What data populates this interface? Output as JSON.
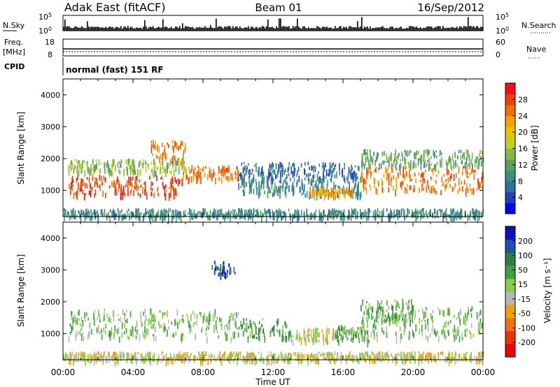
{
  "header": {
    "station": "Adak East (fitACF)",
    "beam": "Beam 01",
    "date": "16/Sep/2012"
  },
  "summary": {
    "nsky_label": "N.Sky",
    "nsearch_label": "N.Search",
    "nsky_ticks": [
      {
        "base": "10",
        "exp": "5"
      },
      {
        "base": "10",
        "exp": "0"
      }
    ],
    "freq_label_1": "Freq.",
    "freq_label_2": "[MHz]",
    "freq_ticks": [
      "18",
      "8"
    ],
    "nave_label": "Nave",
    "nave_ticks": [
      "60",
      "0"
    ],
    "cpid_label": "CPID",
    "cpid_text": "normal (fast) 151 RF"
  },
  "chart_data": [
    {
      "type": "heatmap",
      "name": "power",
      "ylabel": "Slant Range [km]",
      "xlabel": "",
      "xlim": [
        0,
        24
      ],
      "ylim": [
        180,
        4500
      ],
      "x_ticks": [
        "00:00",
        "04:00",
        "08:00",
        "12:00",
        "16:00",
        "20:00",
        "00:00"
      ],
      "y_ticks": [
        1000,
        2000,
        3000,
        4000
      ],
      "colorbar": {
        "label": "Power [dB]",
        "ticks": [
          4,
          8,
          12,
          16,
          20,
          24,
          28
        ],
        "range": [
          0,
          32
        ],
        "colors": [
          "#0000ff",
          "#1f3fbf",
          "#2e6fa0",
          "#3a8f80",
          "#5aa060",
          "#8ab840",
          "#c0d020",
          "#f0c000",
          "#f8a000",
          "#f07000",
          "#f04000",
          "#f01010"
        ]
      },
      "bands": [
        {
          "t0": 0.3,
          "t1": 6.8,
          "r0": 900,
          "r1": 1500,
          "value": 28
        },
        {
          "t0": 6.8,
          "t1": 10.0,
          "r0": 1400,
          "r1": 1800,
          "value": 24
        },
        {
          "t0": 0.3,
          "t1": 7.0,
          "r0": 1600,
          "r1": 2000,
          "value": 14
        },
        {
          "t0": 10.0,
          "t1": 17.0,
          "r0": 900,
          "r1": 1400,
          "value": 10
        },
        {
          "t0": 14.0,
          "t1": 16.5,
          "r0": 900,
          "r1": 1100,
          "value": 22
        },
        {
          "t0": 17.0,
          "t1": 24.0,
          "r0": 1000,
          "r1": 1800,
          "value": 26
        },
        {
          "t0": 17.0,
          "t1": 24.0,
          "r0": 1800,
          "r1": 2300,
          "value": 12
        },
        {
          "t0": 5.0,
          "t1": 7.0,
          "r0": 2000,
          "r1": 2600,
          "value": 24
        },
        {
          "t0": 10.0,
          "t1": 17.0,
          "r0": 1400,
          "r1": 1900,
          "value": 6
        },
        {
          "t0": 0.0,
          "t1": 24.0,
          "r0": 200,
          "r1": 450,
          "value": 10
        }
      ]
    },
    {
      "type": "heatmap",
      "name": "velocity",
      "ylabel": "Slant Range [km]",
      "xlabel": "Time UT",
      "xlim": [
        0,
        24
      ],
      "ylim": [
        180,
        4500
      ],
      "x_ticks": [
        "00:00",
        "04:00",
        "08:00",
        "12:00",
        "16:00",
        "20:00",
        "00:00"
      ],
      "y_ticks": [
        1000,
        2000,
        3000,
        4000
      ],
      "colorbar": {
        "label": "Velocity [m s⁻¹]",
        "ticks": [
          200,
          100,
          50,
          15,
          -15,
          -50,
          -100,
          -200
        ],
        "colors": [
          "#1010c0",
          "#2050b0",
          "#2f7f3f",
          "#40a040",
          "#80d040",
          "#b8b8b0",
          "#f0a000",
          "#f07010",
          "#f03000",
          "#f00000"
        ]
      },
      "bands": [
        {
          "t0": 0.3,
          "t1": 10.0,
          "r0": 900,
          "r1": 1800,
          "value": 0
        },
        {
          "t0": 10.0,
          "t1": 13.0,
          "r0": 900,
          "r1": 1500,
          "value": 40
        },
        {
          "t0": 13.0,
          "t1": 15.5,
          "r0": 800,
          "r1": 1200,
          "value": -40
        },
        {
          "t0": 15.5,
          "t1": 17.5,
          "r0": 800,
          "r1": 1300,
          "value": 40
        },
        {
          "t0": 17.0,
          "t1": 24.0,
          "r0": 900,
          "r1": 1900,
          "value": 0
        },
        {
          "t0": 17.0,
          "t1": 20.0,
          "r0": 1400,
          "r1": 2100,
          "value": 30
        },
        {
          "t0": 8.5,
          "t1": 9.8,
          "r0": 2900,
          "r1": 3300,
          "value": 150
        },
        {
          "t0": 0.0,
          "t1": 24.0,
          "r0": 200,
          "r1": 450,
          "value": -40
        }
      ]
    }
  ]
}
